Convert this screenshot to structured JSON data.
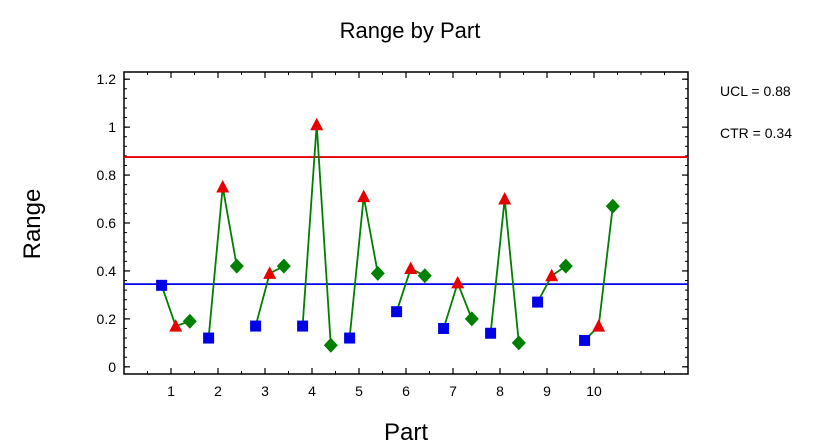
{
  "chart_data": {
    "type": "line",
    "title": "Range by Part",
    "xlabel": "Part",
    "ylabel": "Range",
    "x_ticks": [
      "1",
      "2",
      "3",
      "4",
      "5",
      "6",
      "7",
      "8",
      "9",
      "10"
    ],
    "y_ticks": [
      "0",
      "0.2",
      "0.4",
      "0.6",
      "0.8",
      "1",
      "1.2"
    ],
    "ylim": [
      -0.03,
      1.23
    ],
    "xlim": [
      0,
      12
    ],
    "ucl": 0.875,
    "ctr": 0.345,
    "ucl_label": "UCL = 0.88",
    "ctr_label": "CTR = 0.34",
    "colors": {
      "ucl_line": "#e60000",
      "ctr_line": "#0000e6",
      "connector": "#008000",
      "operator1": "#0000e6",
      "operator2": "#e60000",
      "operator3": "#008000"
    },
    "series": [
      {
        "marker": "square",
        "x": [
          0.8,
          1.8,
          2.8,
          3.8,
          4.8,
          5.8,
          6.8,
          7.8,
          8.8,
          9.8
        ],
        "values": [
          0.34,
          0.12,
          0.17,
          0.17,
          0.12,
          0.23,
          0.16,
          0.14,
          0.27,
          0.11
        ]
      },
      {
        "marker": "triangle",
        "x": [
          1.1,
          2.1,
          3.1,
          4.1,
          5.1,
          6.1,
          7.1,
          8.1,
          9.1,
          10.1
        ],
        "values": [
          0.17,
          0.75,
          0.39,
          1.01,
          0.71,
          0.41,
          0.35,
          0.7,
          0.38,
          0.17
        ]
      },
      {
        "marker": "diamond",
        "x": [
          1.4,
          2.4,
          3.4,
          4.4,
          5.4,
          6.4,
          7.4,
          8.4,
          9.4,
          10.4
        ],
        "values": [
          0.19,
          0.42,
          0.42,
          0.09,
          0.39,
          0.38,
          0.2,
          0.1,
          0.42,
          0.67
        ]
      }
    ]
  }
}
